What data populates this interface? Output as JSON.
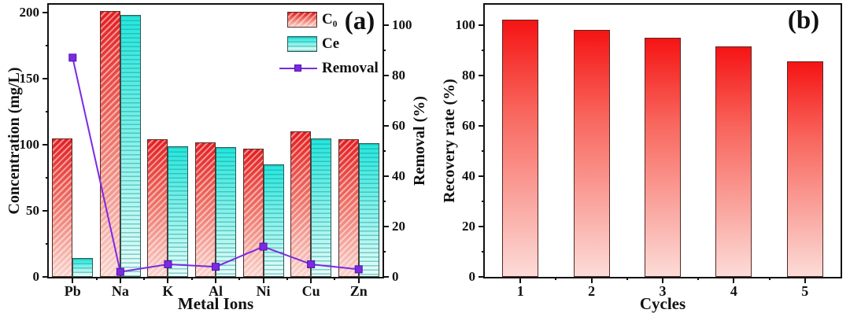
{
  "figure": {
    "background": "#ffffff",
    "text_color": "#111111"
  },
  "colors": {
    "c0_top": "#e41d20",
    "c0_mid": "#ee6f64",
    "c0_bottom": "#fad3cc",
    "c0_hatch": "rgba(255,255,255,0.5)",
    "c0_border": "#52302c",
    "ce_top": "#25e6dd",
    "ce_mid": "#7ff0e9",
    "ce_bottom": "#e9fcf9",
    "ce_stripe": "rgba(13,148,141,0.45)",
    "ce_border": "#2a5a57",
    "removal_line": "#7c2ae2",
    "removal_marker": "#7c2ae2",
    "removal_marker_edge": "#4f12ad",
    "b_top": "#f51414",
    "b_mid": "#f8655c",
    "b_bottom": "#fcdbd7",
    "b_border": "#542825",
    "axis": "#111111"
  },
  "chart_data": [
    {
      "type": "bar+line",
      "panel_label": "(a)",
      "categories": [
        "Pb",
        "Na",
        "K",
        "Al",
        "Ni",
        "Cu",
        "Zn"
      ],
      "xlabel": "Metal Ions",
      "ylabel_left": "Concentration (mg/L)",
      "ylabel_right": "Removal (%)",
      "ylim_left": [
        0,
        206
      ],
      "yticks_left": [
        0,
        50,
        100,
        150,
        200
      ],
      "ylim_right": [
        0,
        108
      ],
      "yticks_right": [
        0,
        20,
        40,
        60,
        80,
        100
      ],
      "grid": false,
      "legend_position": "top-right-inside",
      "series": [
        {
          "label": "C₀",
          "values": [
            105,
            201,
            104,
            102,
            97,
            110,
            104
          ]
        },
        {
          "label": "Ce",
          "values": [
            14,
            198,
            99,
            98,
            85,
            105,
            101
          ]
        }
      ],
      "line": {
        "label": "Removal",
        "values": [
          87,
          2,
          5,
          4,
          12,
          5,
          3
        ]
      }
    },
    {
      "type": "bar",
      "panel_label": "(b)",
      "categories": [
        "1",
        "2",
        "3",
        "4",
        "5"
      ],
      "xlabel": "Cycles",
      "ylabel": "Recovery rate (%)",
      "ylim": [
        0,
        108
      ],
      "yticks": [
        0,
        20,
        40,
        60,
        80,
        100
      ],
      "grid": false,
      "values": [
        102,
        98,
        95,
        91.5,
        85.5
      ]
    }
  ]
}
